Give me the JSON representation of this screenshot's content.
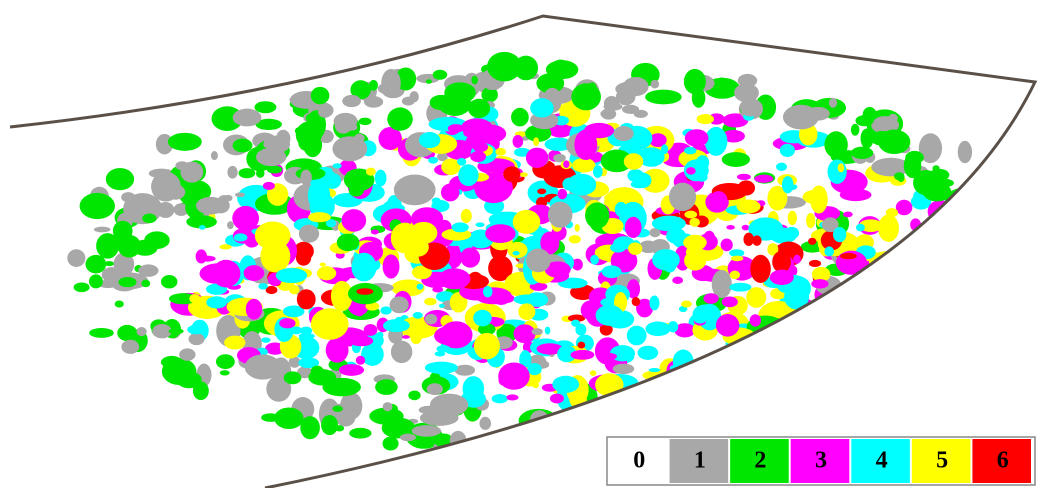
{
  "legend": {
    "items": [
      {
        "label": "0",
        "color": "#ffffff"
      },
      {
        "label": "1",
        "color": "#a8a8a8"
      },
      {
        "label": "2",
        "color": "#00e600"
      },
      {
        "label": "3",
        "color": "#ff00ff"
      },
      {
        "label": "4",
        "color": "#00ffff"
      },
      {
        "label": "5",
        "color": "#ffff00"
      },
      {
        "label": "6",
        "color": "#ff0000"
      }
    ]
  }
}
